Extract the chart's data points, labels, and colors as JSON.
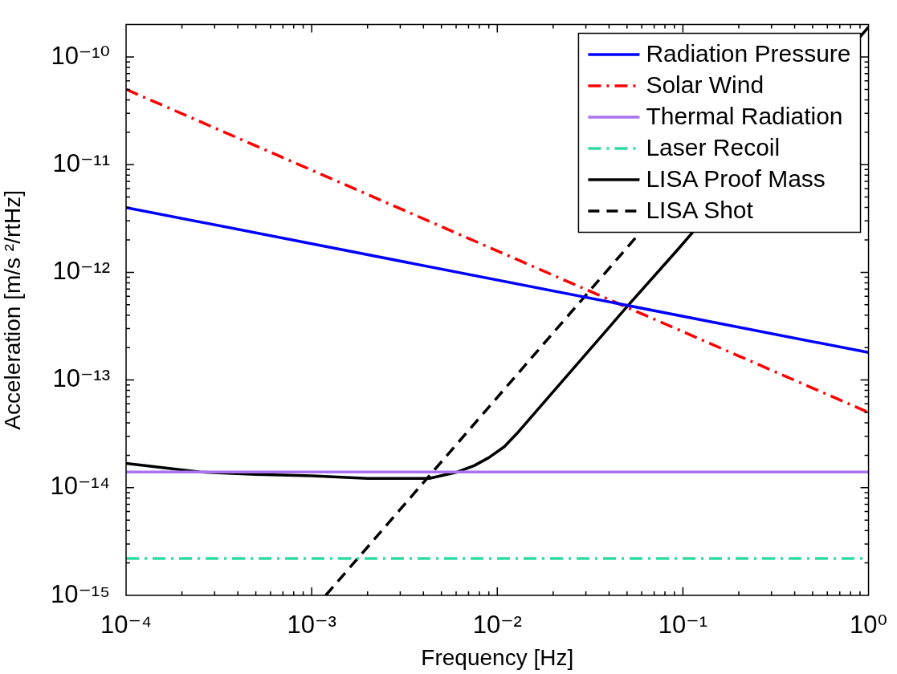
{
  "chart_data": {
    "type": "line",
    "xlabel": "Frequency [Hz]",
    "ylabel": "Acceleration [m/s ²/rtHz]",
    "log": "xy",
    "legend": "top right",
    "xlim": [
      0.0001,
      1
    ],
    "ylim": [
      1e-15,
      2e-10
    ],
    "xticks": [
      {
        "value": 0.0001,
        "label": "10⁻⁴"
      },
      {
        "value": 0.001,
        "label": "10⁻³"
      },
      {
        "value": 0.01,
        "label": "10⁻²"
      },
      {
        "value": 0.1,
        "label": "10⁻¹"
      },
      {
        "value": 1,
        "label": "10⁰"
      }
    ],
    "yticks": [
      {
        "value": 1e-15,
        "label": "10⁻¹⁵"
      },
      {
        "value": 1e-14,
        "label": "10⁻¹⁴"
      },
      {
        "value": 1e-13,
        "label": "10⁻¹³"
      },
      {
        "value": 1e-12,
        "label": "10⁻¹²"
      },
      {
        "value": 1e-11,
        "label": "10⁻¹¹"
      },
      {
        "value": 1e-10,
        "label": "10⁻¹⁰"
      }
    ],
    "series": [
      {
        "name": "Radiation Pressure",
        "color": "#0000ff",
        "line_style": "solid",
        "x": [
          0.0001,
          1
        ],
        "values": [
          4e-12,
          1.8e-13
        ]
      },
      {
        "name": "Solar Wind",
        "color": "#ff0000",
        "line_style": "dashdot",
        "x": [
          0.0001,
          1
        ],
        "values": [
          5e-11,
          5e-14
        ]
      },
      {
        "name": "Thermal Radiation",
        "color": "#a875ee",
        "line_style": "solid",
        "x": [
          0.0001,
          1
        ],
        "values": [
          1.4e-14,
          1.4e-14
        ]
      },
      {
        "name": "Laser Recoil",
        "color": "#2edc9f",
        "line_style": "dashdot",
        "x": [
          0.0001,
          1
        ],
        "values": [
          2.2e-15,
          2.2e-15
        ]
      },
      {
        "name": "LISA Proof Mass",
        "color": "#000000",
        "line_style": "solid",
        "x": [
          0.0001,
          0.00025,
          0.0005,
          0.001,
          0.002,
          0.0043,
          0.0061,
          0.0075,
          0.009,
          0.0109,
          0.013,
          0.0168,
          0.05,
          0.093,
          0.114,
          1
        ],
        "values": [
          1.68e-14,
          1.4e-14,
          1.33e-14,
          1.29e-14,
          1.22e-14,
          1.22e-14,
          1.4e-14,
          1.6e-14,
          1.9e-14,
          2.4e-14,
          3.3e-14,
          5.5e-14,
          4.8e-13,
          1.6e-12,
          2.4e-12,
          1.9e-10
        ]
      },
      {
        "name": "LISA Shot",
        "color": "#000000",
        "line_style": "dashed",
        "x": [
          0.00119,
          0.057
        ],
        "values": [
          1e-15,
          2.2e-12
        ]
      }
    ]
  }
}
